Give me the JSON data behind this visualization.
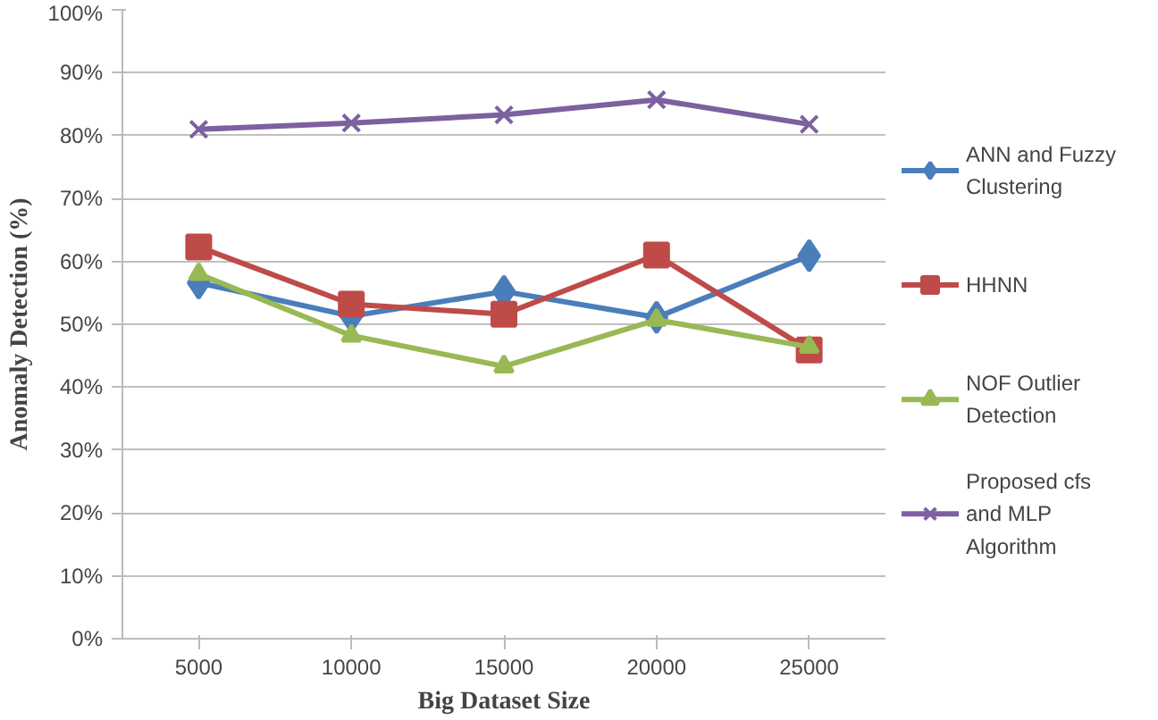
{
  "chart_data": {
    "type": "line",
    "xlabel": "Big Dataset Size",
    "ylabel": "Anomaly Detection (%)",
    "categories": [
      "5000",
      "10000",
      "15000",
      "20000",
      "25000"
    ],
    "ylim": [
      0,
      100
    ],
    "yticks": [
      {
        "value": 0,
        "label": "0%"
      },
      {
        "value": 10,
        "label": "10%"
      },
      {
        "value": 20,
        "label": "20%"
      },
      {
        "value": 30,
        "label": "30%"
      },
      {
        "value": 40,
        "label": "40%"
      },
      {
        "value": 50,
        "label": "50%"
      },
      {
        "value": 60,
        "label": "60%"
      },
      {
        "value": 70,
        "label": "70%"
      },
      {
        "value": 80,
        "label": "80%"
      },
      {
        "value": 90,
        "label": "90%"
      },
      {
        "value": 100,
        "label": "100%"
      }
    ],
    "grid": "y",
    "legend": "right",
    "line_style": "solid",
    "series": [
      {
        "name": "ANN and Fuzzy Clustering",
        "color": "#4a7ebb",
        "marker": "diamond",
        "values": [
          56.6,
          51.3,
          55.2,
          51.1,
          60.9
        ]
      },
      {
        "name": "HHNN",
        "color": "#be4b48",
        "marker": "square",
        "values": [
          62.3,
          53.2,
          51.6,
          61.0,
          45.9
        ]
      },
      {
        "name": "NOF Outlier Detection",
        "color": "#98b954",
        "marker": "triangle",
        "values": [
          58.0,
          48.2,
          43.3,
          50.7,
          46.4
        ]
      },
      {
        "name": "Proposed cfs and MLP Algorithm",
        "color": "#7d60a0",
        "marker": "cross",
        "values": [
          81.0,
          82.0,
          83.3,
          85.7,
          81.8
        ]
      }
    ]
  }
}
